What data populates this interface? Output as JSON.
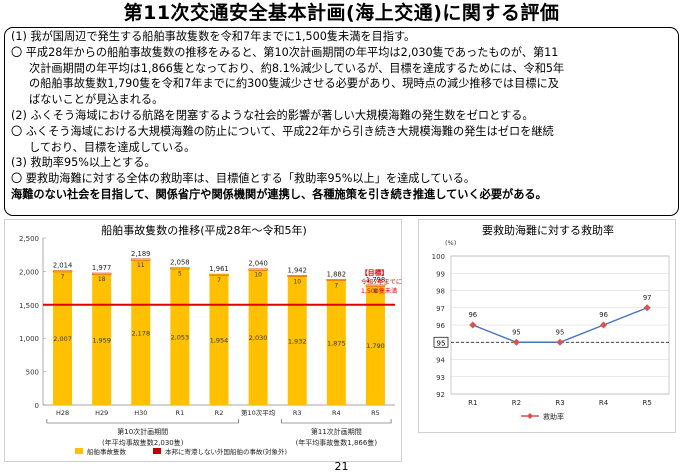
{
  "title": "第11次交通安全基本計画(海上交通)に関する評価",
  "summary": {
    "lines": [
      {
        "text": "(1) 我が国周辺で発生する船舶事故隻数を令和7年までに1,500隻未満を目指す。",
        "indent": false
      },
      {
        "text": "〇 平成28年からの船舶事故隻数の推移をみると、第10次計画期間の年平均は2,030隻であったものが、第11",
        "indent": false
      },
      {
        "text": "次計画期間の年平均は1,866隻となっており、約8.1%減少しているが、目標を達成するためには、令和5年",
        "indent": true
      },
      {
        "text": "の船舶事故隻数1,790隻を令和7年までに約300隻減少させる必要があり、現時点の減少推移では目標に及",
        "indent": true
      },
      {
        "text": "ばないことが見込まれる。",
        "indent": true
      },
      {
        "text": "(2) ふくそう海域における航路を閉塞するような社会的影響が著しい大規模海難の発生数をゼロとする。",
        "indent": false
      },
      {
        "text": "〇 ふくそう海域における大規模海難の防止について、平成22年から引き続き大規模海難の発生はゼロを継続",
        "indent": false
      },
      {
        "text": "しており、目標を達成している。",
        "indent": true
      },
      {
        "text": "(3) 救助率95%以上とする。",
        "indent": false
      },
      {
        "text": "〇 要救助海難に対する全体の救助率は、目標値とする「救助率95%以上」を達成している。",
        "indent": false
      },
      {
        "text": "海難のない社会を目指して、関係省庁や関係機関が連携し、各種施策を引き続き推進していく必要がある。",
        "indent": false,
        "bold": true
      }
    ]
  },
  "page_number": "21",
  "chart_data": [
    {
      "type": "bar",
      "title": "船舶事故隻数の推移(平成28年～令和5年)",
      "categories": [
        "H28",
        "H29",
        "H30",
        "R1",
        "R2",
        "第10次平均",
        "R3",
        "R4",
        "R5"
      ],
      "series": [
        {
          "name": "船舶事故隻数",
          "values": [
            2007,
            1959,
            2178,
            2053,
            1954,
            2030,
            1932,
            1875,
            1790
          ],
          "color": "#ffc000"
        },
        {
          "name": "本邦に寄港しない外国船舶の事故(対象外)",
          "values": [
            7,
            18,
            11,
            5,
            7,
            10,
            10,
            7,
            8
          ],
          "color": "#c00000"
        }
      ],
      "totals": [
        "2,014",
        "1,977",
        "2,189",
        "2,058",
        "1,961",
        "2,040",
        "1,942",
        "1,882",
        "1,798"
      ],
      "bar_labels": [
        "2,007",
        "1,959",
        "2,178",
        "2,053",
        "1,954",
        "2,030",
        "1,932",
        "1,875",
        "1,790"
      ],
      "small_labels": [
        "7",
        "18",
        "11",
        "5",
        "7",
        "10",
        "10",
        "7",
        "8"
      ],
      "ylim": [
        0,
        2500
      ],
      "yticks": [
        "0",
        "500",
        "1,000",
        "1,500",
        "2,000",
        "2,500"
      ],
      "target_line": 1500,
      "target_label": [
        "【目標】",
        "令和7年までに",
        "1,500隻未満"
      ],
      "period_labels": [
        {
          "name": "第10次計画期間",
          "sub": "(年平均事故隻数2,030隻)"
        },
        {
          "name": "第11次計画期間",
          "sub": "(年平均事故隻数1,866隻)"
        }
      ],
      "legend": [
        "船舶事故隻数",
        "本邦に寄港しない外国船舶の事故(対象外)"
      ],
      "grid": false,
      "legend_position": "bottom"
    },
    {
      "type": "line",
      "title": "要救助海難に対する救助率",
      "unit_label": "(%)",
      "x": [
        "R1",
        "R2",
        "R3",
        "R4",
        "R5"
      ],
      "series": [
        {
          "name": "救助率",
          "values": [
            96,
            95,
            95,
            96,
            97
          ],
          "color": "#d9534f"
        }
      ],
      "ylim": [
        92,
        100
      ],
      "yticks": [
        "92",
        "93",
        "94",
        "95",
        "96",
        "97",
        "98",
        "99",
        "100"
      ],
      "target_line": 95,
      "target_label": "95",
      "grid": true,
      "legend": [
        "救助率"
      ],
      "legend_position": "bottom"
    }
  ]
}
